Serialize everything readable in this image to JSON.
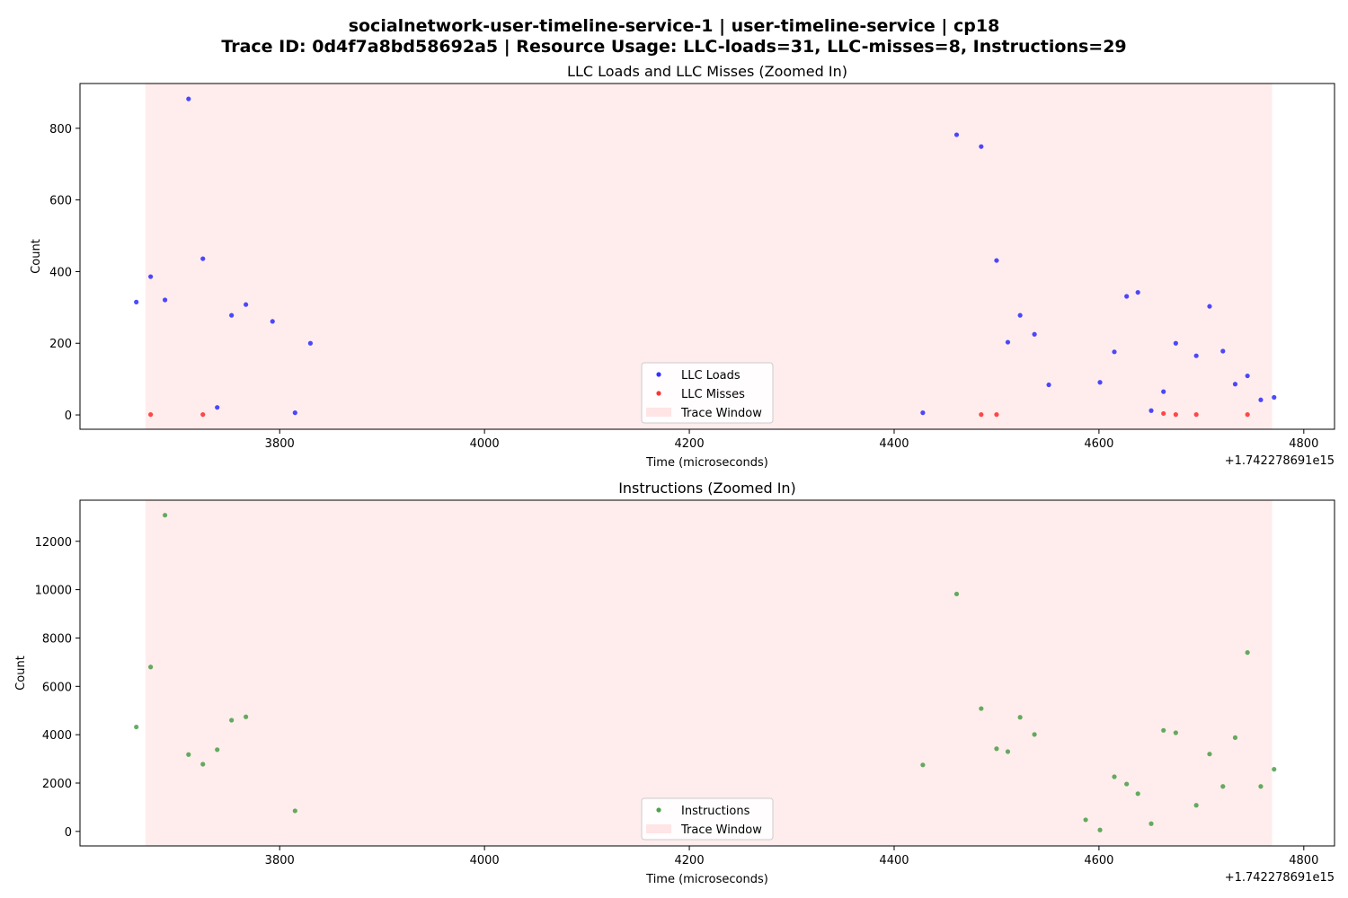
{
  "figure": {
    "title_line1": "socialnetwork-user-timeline-service-1 | user-timeline-service | cp18",
    "title_line2": "Trace ID: 0d4f7a8bd58692a5 | Resource Usage: LLC-loads=31, LLC-misses=8, Instructions=29"
  },
  "colors": {
    "llc_loads": "#0000ff",
    "llc_misses": "#ff0000",
    "instructions": "#228b22",
    "trace_window": "#ffd6d6"
  },
  "chart_data": [
    {
      "type": "scatter",
      "title": "LLC Loads and LLC Misses (Zoomed In)",
      "xlabel": "Time (microseconds)",
      "ylabel": "Count",
      "x_offset_label": "+1.742278691e15",
      "xlim": [
        3605,
        4830
      ],
      "ylim": [
        -40,
        925
      ],
      "xticks": [
        3800,
        4000,
        4200,
        4400,
        4600,
        4800
      ],
      "yticks": [
        0,
        200,
        400,
        600,
        800
      ],
      "legend": {
        "position": "lower-center",
        "entries": [
          "LLC Loads",
          "LLC Misses",
          "Trace Window"
        ]
      },
      "trace_window": [
        3669,
        4769
      ],
      "series": [
        {
          "name": "LLC Loads",
          "points": [
            [
              3660,
              315
            ],
            [
              3674,
              386
            ],
            [
              3688,
              321
            ],
            [
              3711,
              882
            ],
            [
              3725,
              436
            ],
            [
              3739,
              21
            ],
            [
              3753,
              278
            ],
            [
              3767,
              308
            ],
            [
              3793,
              261
            ],
            [
              3815,
              6
            ],
            [
              3830,
              200
            ],
            [
              4428,
              6
            ],
            [
              4461,
              782
            ],
            [
              4485,
              749
            ],
            [
              4500,
              431
            ],
            [
              4511,
              203
            ],
            [
              4523,
              278
            ],
            [
              4537,
              225
            ],
            [
              4551,
              84
            ],
            [
              4601,
              91
            ],
            [
              4615,
              176
            ],
            [
              4627,
              331
            ],
            [
              4638,
              342
            ],
            [
              4651,
              12
            ],
            [
              4663,
              65
            ],
            [
              4675,
              200
            ],
            [
              4695,
              165
            ],
            [
              4708,
              303
            ],
            [
              4721,
              178
            ],
            [
              4733,
              86
            ],
            [
              4745,
              109
            ],
            [
              4758,
              42
            ],
            [
              4771,
              49
            ]
          ]
        },
        {
          "name": "LLC Misses",
          "points": [
            [
              3674,
              1
            ],
            [
              3725,
              1
            ],
            [
              4485,
              1
            ],
            [
              4500,
              1
            ],
            [
              4663,
              4
            ],
            [
              4675,
              1
            ],
            [
              4695,
              1
            ],
            [
              4745,
              1
            ]
          ]
        }
      ]
    },
    {
      "type": "scatter",
      "title": "Instructions (Zoomed In)",
      "xlabel": "Time (microseconds)",
      "ylabel": "Count",
      "x_offset_label": "+1.742278691e15",
      "xlim": [
        3605,
        4830
      ],
      "ylim": [
        -600,
        13700
      ],
      "xticks": [
        3800,
        4000,
        4200,
        4400,
        4600,
        4800
      ],
      "yticks": [
        0,
        2000,
        4000,
        6000,
        8000,
        10000,
        12000
      ],
      "legend": {
        "position": "lower-center",
        "entries": [
          "Instructions",
          "Trace Window"
        ]
      },
      "trace_window": [
        3669,
        4769
      ],
      "series": [
        {
          "name": "Instructions",
          "points": [
            [
              3660,
              4320
            ],
            [
              3674,
              6800
            ],
            [
              3688,
              13080
            ],
            [
              3711,
              3180
            ],
            [
              3725,
              2780
            ],
            [
              3739,
              3380
            ],
            [
              3753,
              4600
            ],
            [
              3767,
              4740
            ],
            [
              3815,
              850
            ],
            [
              4428,
              2750
            ],
            [
              4461,
              9820
            ],
            [
              4485,
              5080
            ],
            [
              4500,
              3420
            ],
            [
              4511,
              3300
            ],
            [
              4523,
              4720
            ],
            [
              4537,
              4010
            ],
            [
              4587,
              480
            ],
            [
              4601,
              60
            ],
            [
              4615,
              2260
            ],
            [
              4627,
              1960
            ],
            [
              4638,
              1560
            ],
            [
              4651,
              320
            ],
            [
              4663,
              4180
            ],
            [
              4675,
              4080
            ],
            [
              4695,
              1080
            ],
            [
              4708,
              3200
            ],
            [
              4721,
              1860
            ],
            [
              4733,
              3880
            ],
            [
              4745,
              7400
            ],
            [
              4758,
              1860
            ],
            [
              4771,
              2570
            ]
          ]
        }
      ]
    }
  ]
}
